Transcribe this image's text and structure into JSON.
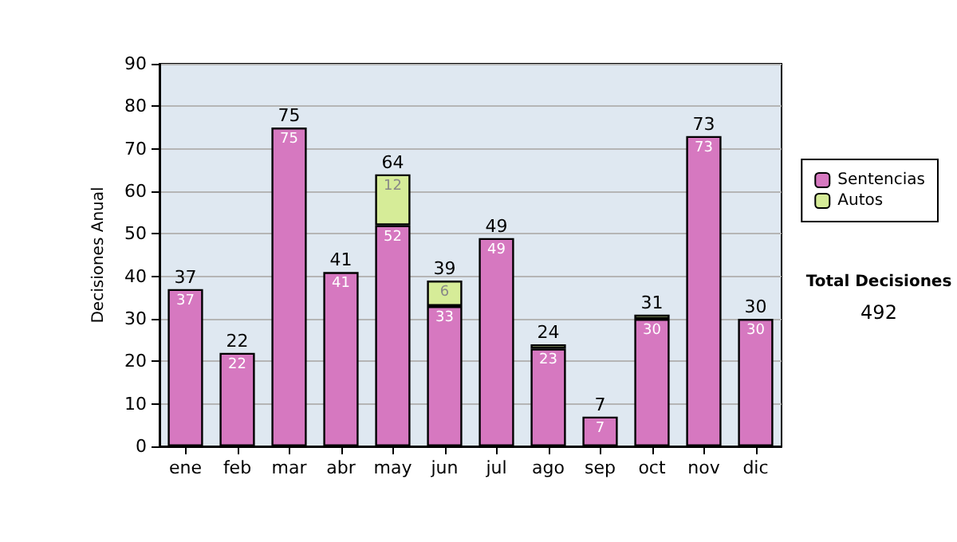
{
  "chart_data": {
    "type": "bar",
    "stacked": true,
    "ylabel": "Decisiones Anual",
    "categories": [
      "ene",
      "feb",
      "mar",
      "abr",
      "may",
      "jun",
      "jul",
      "ago",
      "sep",
      "oct",
      "nov",
      "dic"
    ],
    "series": [
      {
        "name": "Sentencias",
        "color": "#d678c0",
        "values": [
          37,
          22,
          75,
          41,
          52,
          33,
          49,
          23,
          7,
          30,
          73,
          30
        ],
        "value_labels": [
          "37",
          "22",
          "75",
          "41",
          "52",
          "33",
          "49",
          "23",
          "7",
          "30",
          "73",
          "30"
        ]
      },
      {
        "name": "Autos",
        "color": "#d6ec98",
        "values": [
          null,
          null,
          null,
          null,
          12,
          6,
          null,
          1,
          null,
          1,
          null,
          null
        ],
        "value_labels": [
          null,
          null,
          null,
          null,
          "12",
          "6",
          null,
          null,
          null,
          null,
          null,
          null
        ]
      }
    ],
    "totals": [
      "37",
      "22",
      "75",
      "41",
      "64",
      "39",
      "49",
      "24",
      "7",
      "31",
      "73",
      "30"
    ],
    "ylim": [
      0,
      90
    ],
    "yticks": [
      0,
      10,
      20,
      30,
      40,
      50,
      60,
      70,
      80,
      90
    ],
    "grid": "y",
    "legend": "right",
    "annotations": [
      "Total Decisiones",
      "492"
    ]
  }
}
